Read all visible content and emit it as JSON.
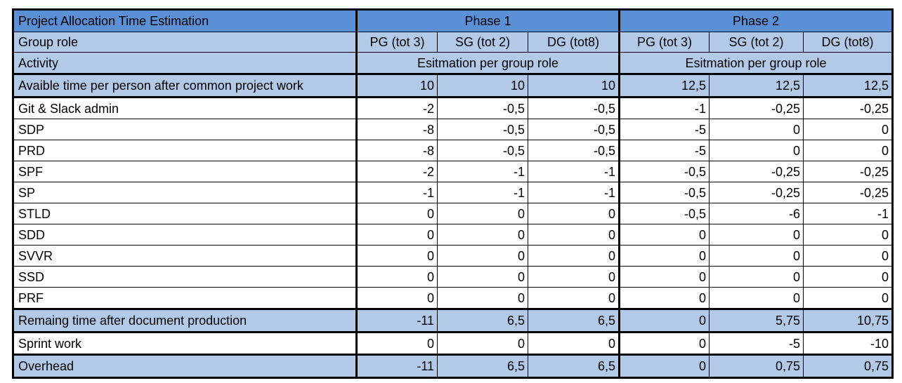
{
  "title": "Project Allocation Time Estimation",
  "phases": [
    "Phase 1",
    "Phase 2"
  ],
  "group_role_label": "Group role",
  "roles": [
    "PG (tot 3)",
    "SG (tot 2)",
    "DG (tot8)",
    "PG (tot 3)",
    "SG (tot 2)",
    "DG (tot8)"
  ],
  "activity_label": "Activity",
  "estimation_label": "Esitmation per  group role",
  "estimation_label_2": "Esitmation per  group role",
  "rows": [
    {
      "label": "Avaible time per person after common project work",
      "values": [
        "10",
        "10",
        "10",
        "12,5",
        "12,5",
        "12,5"
      ]
    },
    {
      "label": "Git & Slack admin",
      "values": [
        "-2",
        "-0,5",
        "-0,5",
        "-1",
        "-0,25",
        "-0,25"
      ]
    },
    {
      "label": "SDP",
      "values": [
        "-8",
        "-0,5",
        "-0,5",
        "-5",
        "0",
        "0"
      ]
    },
    {
      "label": "PRD",
      "values": [
        "-8",
        "-0,5",
        "-0,5",
        "-5",
        "0",
        "0"
      ]
    },
    {
      "label": "SPF",
      "values": [
        "-2",
        "-1",
        "-1",
        "-0,5",
        "-0,25",
        "-0,25"
      ]
    },
    {
      "label": "SP",
      "values": [
        "-1",
        "-1",
        "-1",
        "-0,5",
        "-0,25",
        "-0,25"
      ]
    },
    {
      "label": "STLD",
      "values": [
        "0",
        "0",
        "0",
        "-0,5",
        "-6",
        "-1"
      ]
    },
    {
      "label": "SDD",
      "values": [
        "0",
        "0",
        "0",
        "0",
        "0",
        "0"
      ]
    },
    {
      "label": "SVVR",
      "values": [
        "0",
        "0",
        "0",
        "0",
        "0",
        "0"
      ]
    },
    {
      "label": "SSD",
      "values": [
        "0",
        "0",
        "0",
        "0",
        "0",
        "0"
      ]
    },
    {
      "label": "PRF",
      "values": [
        "0",
        "0",
        "0",
        "0",
        "0",
        "0"
      ]
    },
    {
      "label": "Remaing time after document production",
      "values": [
        "-11",
        "6,5",
        "6,5",
        "0",
        "5,75",
        "10,75"
      ]
    },
    {
      "label": "Sprint work",
      "values": [
        "0",
        "0",
        "0",
        "0",
        "-5",
        "-10"
      ]
    },
    {
      "label": "Overhead",
      "values": [
        "-11",
        "6,5",
        "6,5",
        "0",
        "0,75",
        "0,75"
      ]
    }
  ]
}
